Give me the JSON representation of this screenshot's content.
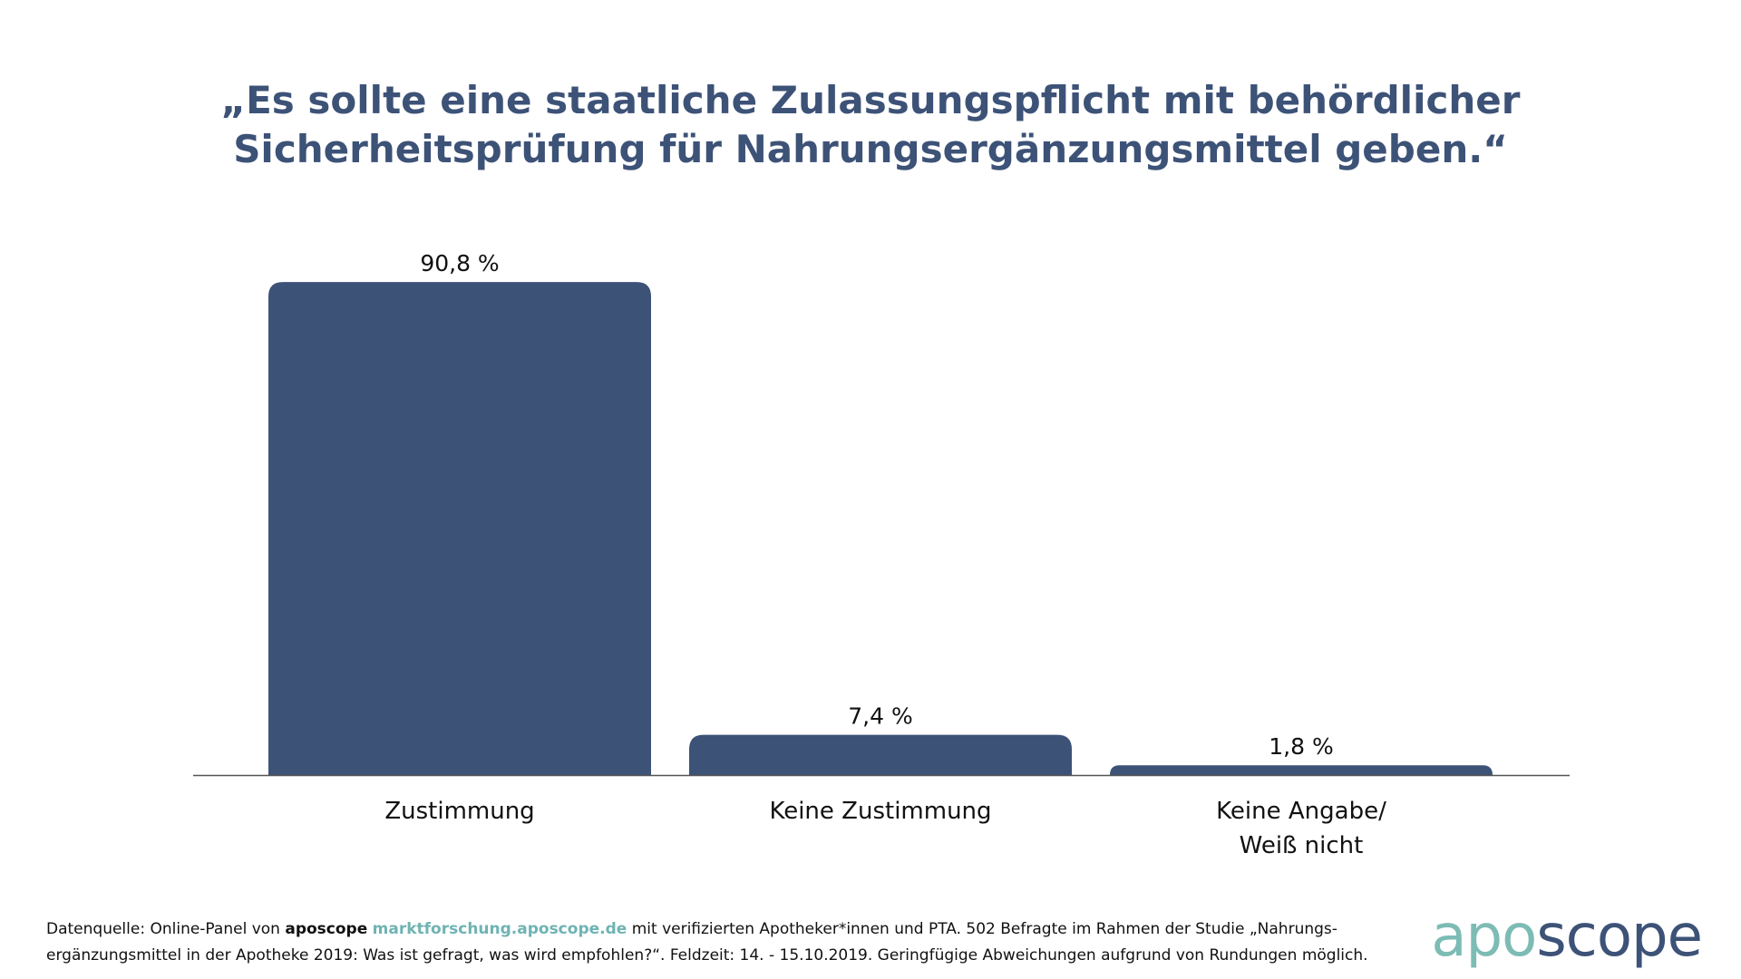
{
  "colors": {
    "bar": "#3d5277",
    "title": "#3d5277",
    "axis": "#555555",
    "accent": "#7cbcb4"
  },
  "chart_data": {
    "type": "bar",
    "title": "„Es sollte eine staatliche Zulassungspflicht mit behördlicher Sicherheitsprüfung für Nahrungsergänzungsmittel geben.“",
    "title_lines": [
      "„Es sollte eine staatliche Zulassungspflicht mit behördlicher",
      "Sicherheitsprüfung für Nahrungsergänzungsmittel geben.“"
    ],
    "categories": [
      [
        "Zustimmung"
      ],
      [
        "Keine Zustimmung"
      ],
      [
        "Keine Angabe/",
        "Weiß nicht"
      ]
    ],
    "values": [
      90.8,
      7.4,
      1.8
    ],
    "value_labels": [
      "90,8 %",
      "7,4 %",
      "1,8 %"
    ],
    "unit": "%",
    "ylim": [
      0,
      100
    ],
    "grid": false,
    "legend": "none"
  },
  "footer": {
    "prefix": "Datenquelle: Online-Panel von ",
    "brand": "aposcope",
    "link": "marktforschung.aposcope.de",
    "line1_rest": " mit verifizierten Apotheker*innen und PTA. 502 Befragte im Rahmen der Studie „Nahrungs-",
    "line2": "ergänzungsmittel in der Apotheke 2019: Was ist gefragt, was wird empfohlen?“. Feldzeit: 14. - 15.10.2019. Geringfügige Abweichungen aufgrund von Rundungen möglich."
  },
  "logo": {
    "part1": "apo",
    "part2": "scope"
  }
}
